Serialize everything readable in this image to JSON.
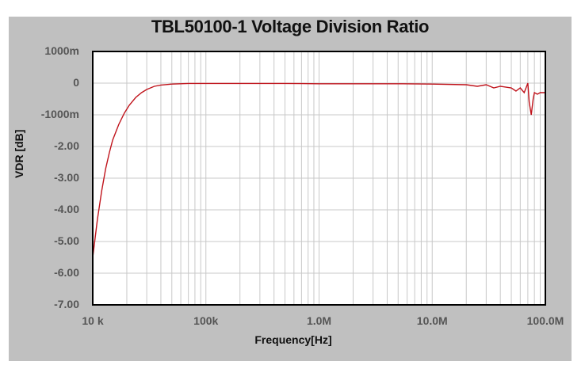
{
  "chart_data": {
    "type": "line",
    "title": "TBL50100-1 Voltage Division Ratio",
    "xlabel": "Frequency[Hz]",
    "ylabel": "VDR [dB]",
    "xscale": "log",
    "xlim": [
      10000,
      100000000
    ],
    "ylim": [
      -7.0,
      1.0
    ],
    "grid": true,
    "legend": "none",
    "x_tick_labels": [
      "10 k",
      "100k",
      "1.0M",
      "10.0M",
      "100.0M"
    ],
    "y_tick_labels": [
      "1000m",
      "0",
      "-1000m",
      "-2.00",
      "-3.00",
      "-4.00",
      "-5.00",
      "-6.00",
      "-7.00"
    ],
    "series": [
      {
        "name": "VDR",
        "color": "#c0141c",
        "x": [
          10000,
          11000,
          12000,
          13000,
          14000,
          15000,
          17000,
          19000,
          21000,
          24000,
          27000,
          30000,
          35000,
          40000,
          50000,
          70000,
          100000,
          200000,
          500000,
          1000000,
          2000000,
          5000000,
          10000000,
          20000000,
          25000000,
          30000000,
          35000000,
          40000000,
          50000000,
          55000000,
          60000000,
          65000000,
          70000000,
          72000000,
          75000000,
          78000000,
          80000000,
          85000000,
          90000000,
          100000000
        ],
        "y": [
          -5.5,
          -4.3,
          -3.4,
          -2.7,
          -2.2,
          -1.8,
          -1.3,
          -0.95,
          -0.7,
          -0.45,
          -0.3,
          -0.2,
          -0.1,
          -0.06,
          -0.03,
          -0.01,
          -0.01,
          -0.01,
          -0.01,
          -0.02,
          -0.02,
          -0.02,
          -0.03,
          -0.05,
          -0.1,
          -0.05,
          -0.15,
          -0.1,
          -0.15,
          -0.25,
          -0.15,
          -0.3,
          0.0,
          -0.6,
          -1.0,
          -0.5,
          -0.3,
          -0.35,
          -0.3,
          -0.3
        ]
      }
    ]
  },
  "layout": {
    "panel_color": "#c0c0c0",
    "plot_bg": "#ffffff",
    "grid_color": "#c8c8c8",
    "line_color": "#c0141c"
  }
}
